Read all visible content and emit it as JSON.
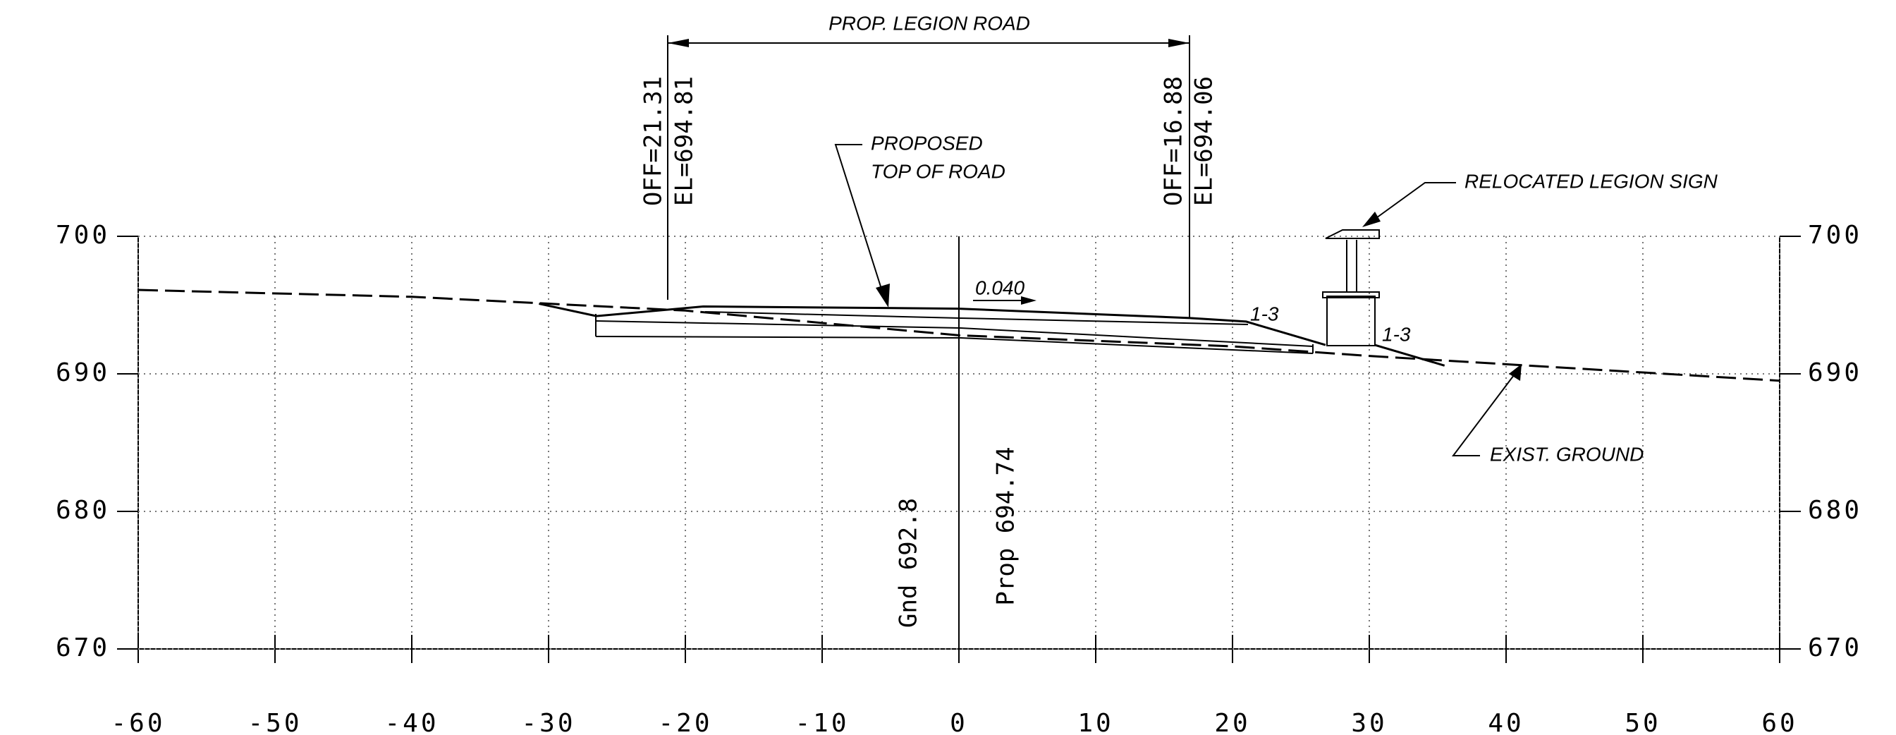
{
  "chart_data": {
    "type": "line",
    "xlim": [
      -60,
      60
    ],
    "ylim": [
      670,
      700
    ],
    "xticks": [
      -60,
      -50,
      -40,
      -30,
      -20,
      -10,
      0,
      10,
      20,
      30,
      40,
      50,
      60
    ],
    "yticks": [
      670,
      680,
      690,
      700
    ],
    "grid": true,
    "series": [
      {
        "color": "#000000",
        "dash": true,
        "x": [
          -60,
          -40,
          -30,
          -20,
          0,
          20,
          30,
          40,
          50,
          60
        ],
        "values": [
          696.1,
          695.6,
          695.1,
          694.6,
          692.8,
          692.0,
          691.3,
          690.7,
          690.1,
          689.5
        ]
      },
      {
        "color": "#000000",
        "dash": false,
        "x": [
          -30.7,
          -26.5,
          -18.7,
          0,
          16.88,
          21,
          26.8,
          null,
          30.4,
          35.5
        ],
        "values": [
          695.1,
          694.2,
          694.9,
          694.74,
          694.06,
          693.8,
          692.1,
          null,
          692.1,
          690.6
        ]
      }
    ],
    "annotations": [
      "PROP. LEGION ROAD",
      "OFF=21.31",
      "EL=694.81",
      "OFF=16.88",
      "EL=694.06",
      "PROPOSED",
      "TOP OF ROAD",
      "0.040",
      "1-3",
      "1-3",
      "RELOCATED LEGION SIGN",
      "EXIST. GROUND",
      "Gnd 692.8",
      "Prop 694.74"
    ]
  }
}
